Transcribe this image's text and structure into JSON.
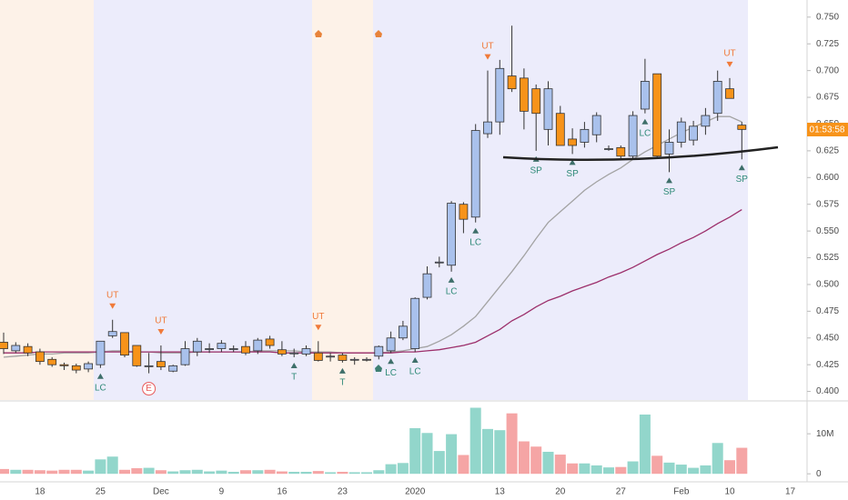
{
  "chart_data": {
    "type": "candlestick",
    "categories": [
      null,
      null,
      null,
      "18",
      null,
      null,
      null,
      null,
      "25",
      null,
      null,
      null,
      null,
      "Dec",
      null,
      null,
      null,
      null,
      "9",
      null,
      null,
      null,
      null,
      "16",
      null,
      null,
      null,
      null,
      "23",
      null,
      null,
      null,
      null,
      null,
      "2020",
      null,
      null,
      null,
      null,
      null,
      null,
      "13",
      null,
      null,
      null,
      null,
      "20",
      null,
      null,
      null,
      null,
      "27",
      null,
      null,
      null,
      null,
      "Feb",
      null,
      null,
      null,
      "10",
      null,
      null,
      null,
      null,
      "17",
      null
    ],
    "open": [
      0.446,
      0.438,
      0.442,
      0.437,
      0.43,
      0.425,
      0.424,
      0.421,
      0.425,
      0.452,
      0.455,
      0.443,
      0.424,
      0.428,
      0.419,
      0.425,
      0.437,
      0.44,
      0.44,
      0.44,
      0.442,
      0.438,
      0.449,
      0.439,
      0.436,
      0.435,
      0.436,
      0.433,
      0.434,
      0.43,
      0.43,
      0.433,
      0.438,
      0.45,
      0.44,
      0.488,
      0.521,
      0.518,
      0.575,
      0.563,
      0.641,
      0.652,
      0.695,
      0.693,
      0.683,
      0.645,
      0.66,
      0.636,
      0.633,
      0.64,
      0.627,
      0.628,
      0.62,
      0.664,
      0.697,
      0.622,
      0.633,
      0.635,
      0.648,
      0.66,
      0.683,
      0.649,
      null,
      null,
      null,
      null,
      null
    ],
    "high": [
      0.455,
      0.446,
      0.445,
      0.44,
      0.432,
      0.427,
      0.426,
      0.428,
      0.447,
      0.467,
      0.455,
      0.443,
      0.436,
      0.443,
      0.425,
      0.447,
      0.45,
      0.445,
      0.448,
      0.443,
      0.447,
      0.45,
      0.452,
      0.447,
      0.44,
      0.443,
      0.447,
      0.436,
      0.436,
      0.432,
      0.432,
      0.443,
      0.456,
      0.466,
      0.488,
      0.517,
      0.526,
      0.578,
      0.577,
      0.65,
      0.7,
      0.71,
      0.742,
      0.702,
      0.687,
      0.69,
      0.667,
      0.646,
      0.652,
      0.661,
      0.63,
      0.63,
      0.662,
      0.711,
      0.697,
      0.645,
      0.656,
      0.653,
      0.665,
      0.7,
      0.693,
      0.652,
      null,
      null,
      null,
      null,
      null
    ],
    "low": [
      0.435,
      0.436,
      0.433,
      0.425,
      0.423,
      0.42,
      0.417,
      0.418,
      0.422,
      0.45,
      0.432,
      0.423,
      0.417,
      0.42,
      0.418,
      0.424,
      0.433,
      0.436,
      0.437,
      0.437,
      0.434,
      0.435,
      0.44,
      0.433,
      0.432,
      0.433,
      0.428,
      0.428,
      0.427,
      0.425,
      0.428,
      0.43,
      0.436,
      0.448,
      0.437,
      0.486,
      0.516,
      0.512,
      0.548,
      0.558,
      0.637,
      0.64,
      0.68,
      0.645,
      0.625,
      0.63,
      0.63,
      0.622,
      0.628,
      0.633,
      0.625,
      0.618,
      0.617,
      0.66,
      0.618,
      0.605,
      0.628,
      0.63,
      0.64,
      0.653,
      0.674,
      0.617,
      null,
      null,
      null,
      null,
      null
    ],
    "close": [
      0.44,
      0.443,
      0.436,
      0.428,
      0.425,
      0.424,
      0.42,
      0.426,
      0.447,
      0.456,
      0.434,
      0.424,
      0.424,
      0.423,
      0.424,
      0.44,
      0.447,
      0.44,
      0.445,
      0.44,
      0.436,
      0.448,
      0.443,
      0.435,
      0.436,
      0.44,
      0.429,
      0.433,
      0.429,
      0.43,
      0.43,
      0.442,
      0.45,
      0.461,
      0.487,
      0.51,
      0.521,
      0.576,
      0.561,
      0.644,
      0.652,
      0.702,
      0.683,
      0.662,
      0.66,
      0.683,
      0.63,
      0.63,
      0.645,
      0.658,
      0.627,
      0.62,
      0.658,
      0.69,
      0.62,
      0.633,
      0.652,
      0.648,
      0.658,
      0.69,
      0.674,
      0.645,
      null,
      null,
      null,
      null,
      null
    ],
    "volume": [
      1200000,
      1000000,
      1000000,
      900000,
      800000,
      1000000,
      1000000,
      800000,
      3600000,
      4300000,
      1000000,
      1400000,
      1500000,
      900000,
      600000,
      900000,
      1000000,
      600000,
      800000,
      500000,
      900000,
      900000,
      1000000,
      600000,
      500000,
      500000,
      700000,
      400000,
      500000,
      400000,
      400000,
      900000,
      2400000,
      2700000,
      11400000,
      10200000,
      5700000,
      9900000,
      4700000,
      16500000,
      11200000,
      10900000,
      15100000,
      8100000,
      6800000,
      5500000,
      4800000,
      2600000,
      2600000,
      2100000,
      1600000,
      1700000,
      3100000,
      14800000,
      4500000,
      2800000,
      2300000,
      1500000,
      2100000,
      7700000,
      3400000,
      6500000,
      null,
      null,
      null,
      null,
      null
    ],
    "ma_fast": {
      "color": "#a3a3a3",
      "values": [
        0.432,
        0.433,
        0.434,
        0.435,
        0.435,
        0.436,
        0.436,
        0.436,
        0.437,
        0.438,
        0.438,
        0.437,
        0.437,
        0.436,
        0.436,
        0.436,
        0.437,
        0.437,
        0.437,
        0.437,
        0.437,
        0.438,
        0.438,
        0.438,
        0.438,
        0.437,
        0.437,
        0.437,
        0.436,
        0.436,
        0.436,
        0.436,
        0.437,
        0.438,
        0.44,
        0.442,
        0.447,
        0.453,
        0.461,
        0.47,
        0.484,
        0.498,
        0.512,
        0.527,
        0.543,
        0.558,
        0.568,
        0.578,
        0.588,
        0.596,
        0.603,
        0.609,
        0.617,
        0.624,
        0.63,
        0.636,
        0.642,
        0.647,
        0.652,
        0.657,
        0.657,
        0.652,
        null,
        null,
        null,
        null,
        null
      ]
    },
    "ma_slow": {
      "color": "#9c2f6b",
      "values": [
        0.436,
        0.436,
        0.436,
        0.437,
        0.437,
        0.437,
        0.437,
        0.437,
        0.437,
        0.437,
        0.437,
        0.437,
        0.437,
        0.437,
        0.437,
        0.437,
        0.437,
        0.437,
        0.437,
        0.437,
        0.437,
        0.437,
        0.437,
        0.436,
        0.436,
        0.436,
        0.436,
        0.436,
        0.436,
        0.436,
        0.436,
        0.436,
        0.436,
        0.437,
        0.437,
        0.438,
        0.439,
        0.441,
        0.443,
        0.446,
        0.452,
        0.458,
        0.466,
        0.472,
        0.479,
        0.485,
        0.489,
        0.494,
        0.498,
        0.502,
        0.507,
        0.511,
        0.516,
        0.522,
        0.528,
        0.533,
        0.539,
        0.544,
        0.55,
        0.557,
        0.563,
        0.57,
        null,
        null,
        null,
        null,
        null
      ]
    },
    "up_color": "#a9c1ec",
    "down_color": "#f7931a",
    "volume_up_color": "#92d6cb",
    "volume_down_color": "#f5a5a5",
    "signals_above": [
      null,
      null,
      null,
      null,
      null,
      null,
      null,
      null,
      null,
      "UT",
      null,
      null,
      null,
      "UT",
      null,
      null,
      null,
      null,
      null,
      null,
      null,
      null,
      null,
      null,
      null,
      null,
      "UT",
      null,
      null,
      null,
      null,
      null,
      null,
      null,
      null,
      null,
      null,
      null,
      null,
      null,
      "UT",
      null,
      null,
      null,
      null,
      null,
      null,
      null,
      null,
      null,
      null,
      null,
      null,
      null,
      null,
      null,
      null,
      null,
      null,
      null,
      "UT",
      null,
      null,
      null,
      null,
      null,
      null
    ],
    "signals_below": [
      null,
      null,
      null,
      null,
      null,
      null,
      null,
      null,
      "LC",
      null,
      null,
      null,
      null,
      null,
      null,
      null,
      null,
      null,
      null,
      null,
      null,
      null,
      null,
      null,
      "T",
      null,
      null,
      null,
      "T",
      null,
      null,
      null,
      "LC",
      null,
      "LC",
      null,
      null,
      "LC",
      null,
      "LC",
      null,
      null,
      null,
      null,
      "SP",
      null,
      null,
      "SP",
      null,
      null,
      null,
      null,
      null,
      "LC",
      null,
      "SP",
      null,
      null,
      null,
      null,
      null,
      "SP",
      null,
      null,
      null,
      null,
      null
    ],
    "events": [
      null,
      null,
      null,
      null,
      null,
      null,
      null,
      null,
      null,
      null,
      null,
      null,
      "E",
      null,
      null,
      null,
      null,
      null,
      null,
      null,
      null,
      null,
      null,
      null,
      null,
      null,
      null,
      null,
      null,
      null,
      null,
      null,
      null,
      null,
      null,
      null,
      null,
      null,
      null,
      null,
      null,
      null,
      null,
      null,
      null,
      null,
      null,
      null,
      null,
      null,
      null,
      null,
      null,
      null,
      null,
      null,
      null,
      null,
      null,
      null,
      null,
      null,
      null,
      null,
      null,
      null,
      null
    ],
    "ylim": [
      0.392,
      0.766
    ],
    "yticks": [
      {
        "value": 0.4,
        "label": "0.400"
      },
      {
        "value": 0.425,
        "label": "0.425"
      },
      {
        "value": 0.45,
        "label": "0.450"
      },
      {
        "value": 0.475,
        "label": "0.475"
      },
      {
        "value": 0.5,
        "label": "0.500"
      },
      {
        "value": 0.525,
        "label": "0.525"
      },
      {
        "value": 0.55,
        "label": "0.550"
      },
      {
        "value": 0.575,
        "label": "0.575"
      },
      {
        "value": 0.6,
        "label": "0.600"
      },
      {
        "value": 0.625,
        "label": "0.625"
      },
      {
        "value": 0.65,
        "label": "0.650"
      },
      {
        "value": 0.675,
        "label": "0.675"
      },
      {
        "value": 0.7,
        "label": "0.700"
      },
      {
        "value": 0.725,
        "label": "0.725"
      },
      {
        "value": 0.75,
        "label": "0.750"
      }
    ],
    "volume_lim": [
      -2000000,
      17300000
    ],
    "volume_ticks": [
      {
        "value": 10000000,
        "label": "10M"
      },
      0
    ],
    "countdown": "01:53:58"
  }
}
